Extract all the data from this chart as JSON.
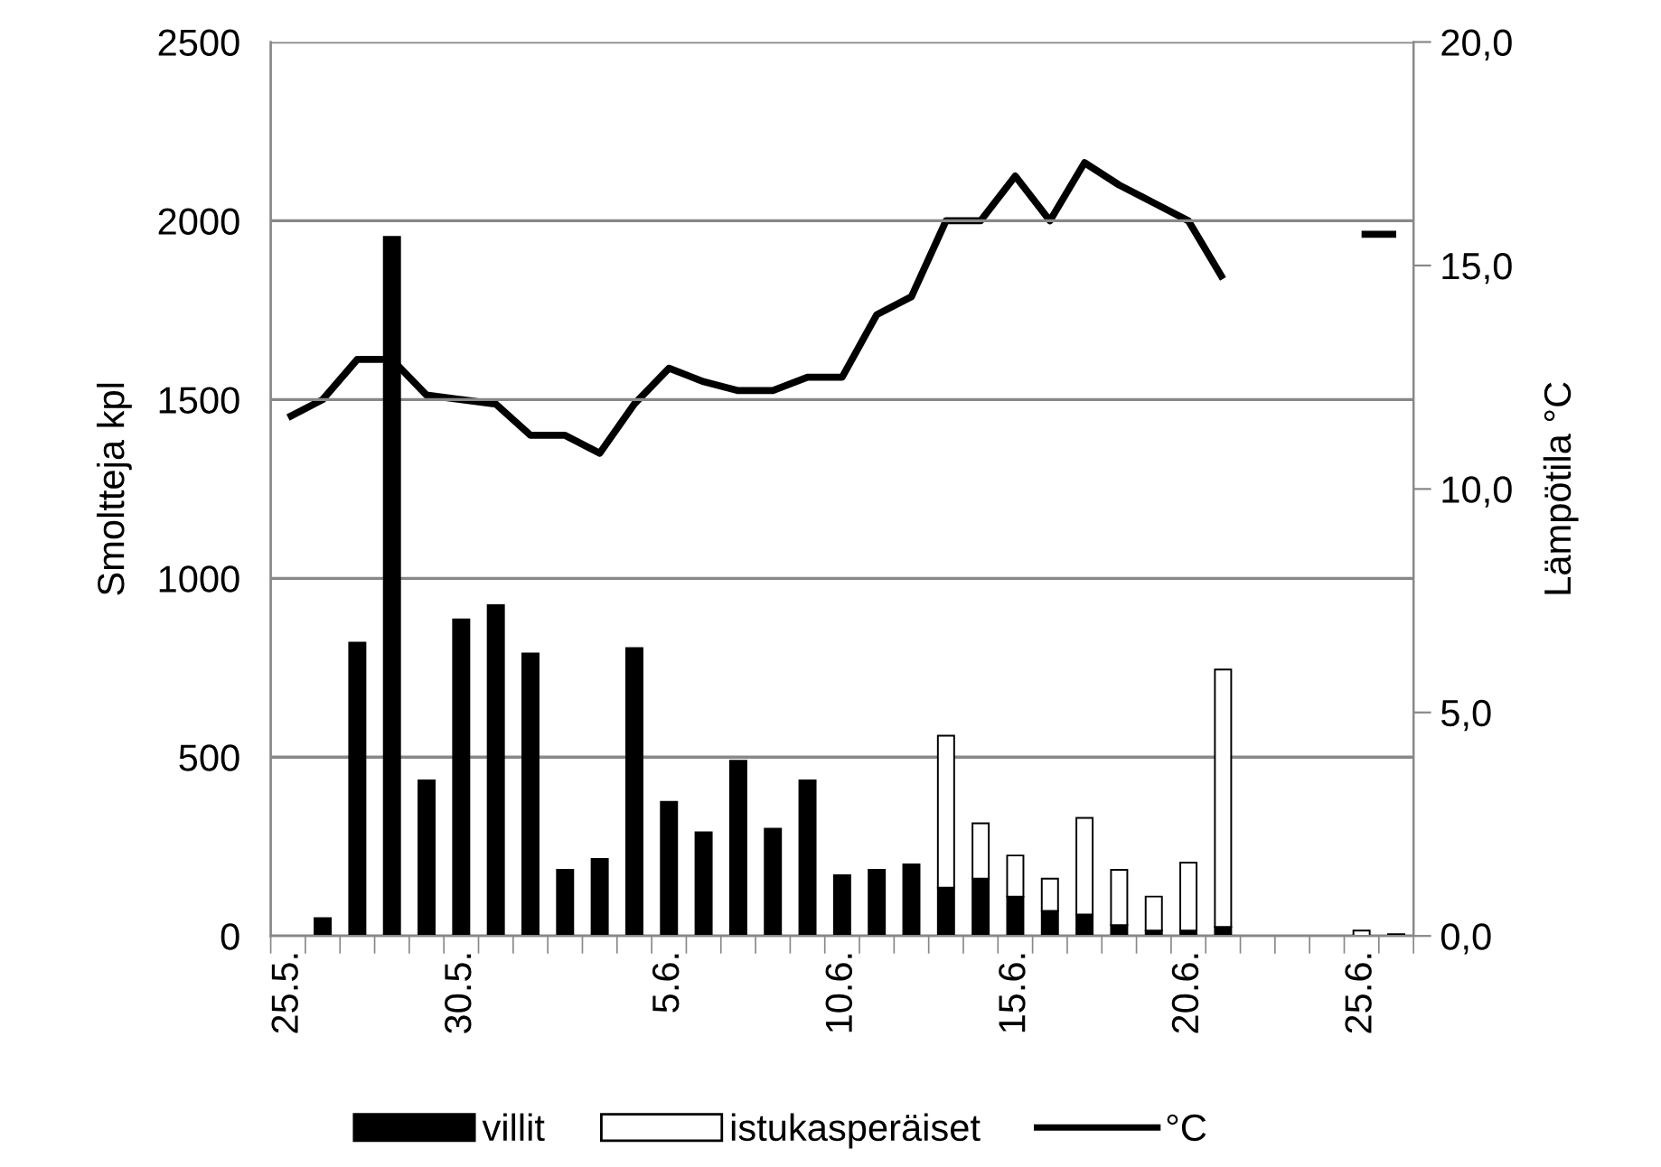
{
  "chart_data": {
    "type": "bar",
    "stacked": true,
    "ylabel": "Smoltteja kpl",
    "y2label": "Lämpötila °C",
    "categories": [
      "25.5.",
      null,
      null,
      null,
      null,
      "30.5.",
      null,
      null,
      null,
      null,
      null,
      "5.6.",
      null,
      null,
      null,
      null,
      "10.6.",
      null,
      null,
      null,
      null,
      "15.6.",
      null,
      null,
      null,
      null,
      "20.6.",
      null,
      null,
      null,
      null,
      "25.6.",
      null
    ],
    "series": [
      {
        "name": "villit",
        "color": "#000000",
        "values": [
          null,
          50,
          820,
          1955,
          435,
          885,
          925,
          790,
          185,
          215,
          805,
          375,
          290,
          490,
          300,
          435,
          170,
          185,
          200,
          135,
          160,
          110,
          70,
          60,
          30,
          15,
          15,
          25,
          null,
          null,
          null,
          null,
          5
        ]
      },
      {
        "name": "istukasperäiset",
        "color": "#ffffff",
        "values": [
          null,
          null,
          null,
          null,
          null,
          null,
          null,
          null,
          null,
          null,
          null,
          null,
          null,
          null,
          null,
          null,
          null,
          null,
          null,
          425,
          155,
          115,
          90,
          270,
          155,
          95,
          190,
          720,
          null,
          null,
          null,
          15,
          null
        ]
      },
      {
        "name": "°C",
        "type": "line",
        "axis": "y2",
        "color": "#000000",
        "values": [
          11.6,
          12.0,
          12.9,
          12.9,
          12.1,
          12.0,
          11.9,
          11.2,
          11.2,
          10.8,
          11.9,
          12.7,
          12.4,
          12.2,
          12.2,
          12.5,
          12.5,
          13.9,
          14.3,
          16.0,
          16.0,
          17.0,
          16.0,
          17.3,
          16.8,
          16.4,
          16.0,
          14.7,
          null,
          null,
          null,
          15.7,
          15.7
        ]
      }
    ],
    "ylim": [
      0,
      2500
    ],
    "yticks": [
      0,
      500,
      1000,
      1500,
      2000,
      2500
    ],
    "y2lim": [
      0,
      20
    ],
    "y2ticks": [
      {
        "value": 0,
        "label": "0,0"
      },
      {
        "value": 5,
        "label": "5,0"
      },
      {
        "value": 10,
        "label": "10,0"
      },
      {
        "value": 15,
        "label": "15,0"
      },
      {
        "value": 20,
        "label": "20,0"
      }
    ],
    "grid": "y",
    "legend": "bottom"
  }
}
